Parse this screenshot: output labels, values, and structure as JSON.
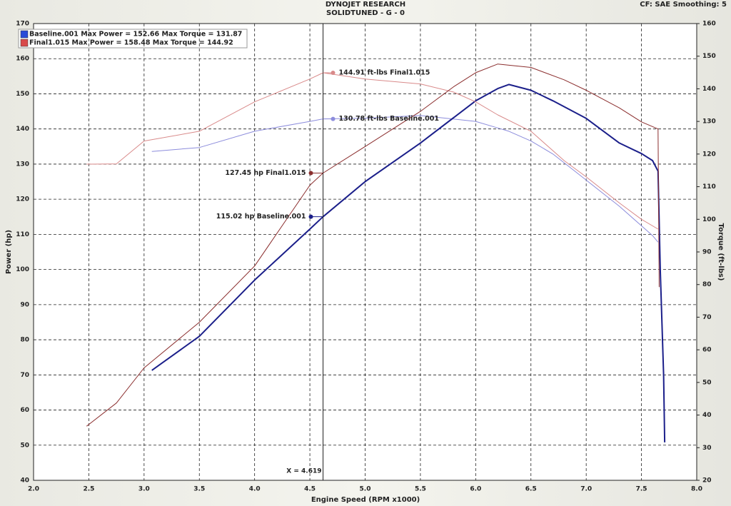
{
  "chart_data": {
    "type": "line",
    "title": "DYNOJET RESEARCH",
    "subtitle": "SOLIDTUNED - G - 0",
    "settings_text": "CF: SAE  Smoothing: 5",
    "x_label": "Engine Speed (RPM x1000)",
    "y_label": "Power (hp)",
    "y2_label": "Torque (ft-lbs)",
    "xlim": [
      2.0,
      8.0
    ],
    "xticks": [
      {
        "value": 2,
        "label": "2.0"
      },
      2.5,
      {
        "value": 3,
        "label": "3.0"
      },
      3.5,
      {
        "value": 4,
        "label": "4.0"
      },
      4.5,
      {
        "value": 5,
        "label": "5.0"
      },
      5.5,
      {
        "value": 6,
        "label": "6.0"
      },
      6.5,
      {
        "value": 7,
        "label": "7.0"
      },
      7.5,
      {
        "value": 8,
        "label": "8.0"
      }
    ],
    "ylim": [
      40,
      170
    ],
    "yticks": [
      40,
      50,
      60,
      70,
      80,
      90,
      100,
      110,
      120,
      130,
      140,
      150,
      160,
      170
    ],
    "y2lim": [
      20,
      160
    ],
    "y2ticks": [
      20,
      30,
      40,
      50,
      60,
      70,
      80,
      90,
      100,
      110,
      120,
      130,
      140,
      150,
      160
    ],
    "grid": true,
    "cursor": {
      "value": 4.619,
      "label": "X = 4.619"
    },
    "series": [
      {
        "name": "Baseline.001 Max Power = 152.66 Max Torque = 131.87",
        "color": "#1b1f8a",
        "torque_color": "#8c8cdc",
        "x": [
          3.07,
          3.5,
          4.0,
          4.5,
          4.619,
          5.0,
          5.5,
          6.0,
          6.2,
          6.3,
          6.5,
          6.7,
          7.0,
          7.3,
          7.5,
          7.6,
          7.65,
          7.67,
          7.7,
          7.71
        ],
        "values": [
          71.3,
          81,
          97,
          111.5,
          115.02,
          125,
          136,
          148,
          151.5,
          152.66,
          151,
          148,
          143,
          136,
          133,
          131,
          128,
          100,
          70,
          50.8
        ],
        "torque": [
          120.8,
          122,
          127,
          130,
          130.78,
          131,
          131.8,
          130,
          128,
          127,
          124,
          120,
          112,
          104,
          98,
          95,
          93,
          null,
          null,
          null
        ]
      },
      {
        "name": "Final1.015 Max Power = 158.48 Max Torque = 144.92",
        "color": "#8b2e2e",
        "torque_color": "#d98a8a",
        "x": [
          2.48,
          2.75,
          3.0,
          3.5,
          4.0,
          4.5,
          4.619,
          5.0,
          5.5,
          5.8,
          6.0,
          6.2,
          6.5,
          6.8,
          7.0,
          7.3,
          7.5,
          7.65,
          7.66
        ],
        "values": [
          55.4,
          62,
          72,
          85,
          101,
          124,
          127.45,
          135,
          145,
          152,
          156,
          158.48,
          157.5,
          154,
          151,
          146,
          142,
          140,
          95
        ],
        "torque": [
          116.9,
          117,
          124,
          127,
          136,
          143,
          144.91,
          143,
          141.5,
          139,
          136,
          132,
          127,
          118,
          113,
          105,
          100,
          97,
          null
        ]
      }
    ],
    "annotations": [
      {
        "text": "144.91 ft-lbs Final1.015",
        "series": 1,
        "field": "torque"
      },
      {
        "text": "130.78 ft-lbs Baseline.001",
        "series": 0,
        "field": "torque"
      },
      {
        "text": "127.45 hp Final1.015",
        "series": 1,
        "field": "values"
      },
      {
        "text": "115.02 hp Baseline.001",
        "series": 0,
        "field": "values"
      }
    ]
  }
}
